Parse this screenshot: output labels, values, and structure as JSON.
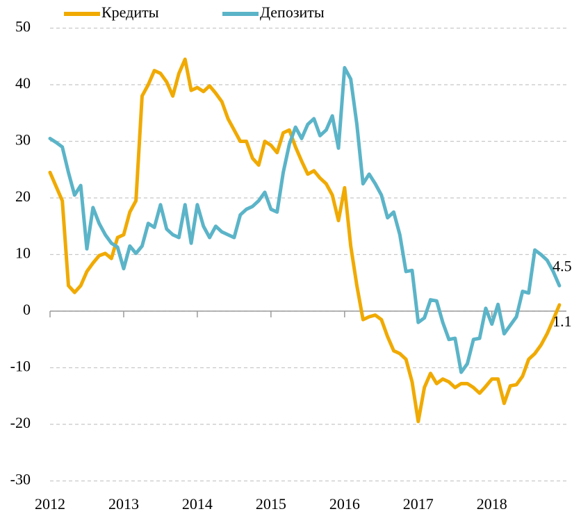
{
  "chart_data": {
    "type": "line",
    "categories": [
      "2012",
      null,
      null,
      null,
      null,
      null,
      null,
      null,
      null,
      null,
      null,
      null,
      "2013",
      null,
      null,
      null,
      null,
      null,
      null,
      null,
      null,
      null,
      null,
      null,
      "2014",
      null,
      null,
      null,
      null,
      null,
      null,
      null,
      null,
      null,
      null,
      null,
      "2015",
      null,
      null,
      null,
      null,
      null,
      null,
      null,
      null,
      null,
      null,
      null,
      "2016",
      null,
      null,
      null,
      null,
      null,
      null,
      null,
      null,
      null,
      null,
      null,
      "2017",
      null,
      null,
      null,
      null,
      null,
      null,
      null,
      null,
      null,
      null,
      null,
      "2018",
      null,
      null,
      null,
      null,
      null,
      null,
      null,
      null,
      null,
      null,
      null
    ],
    "series": [
      {
        "name": "Кредиты",
        "color": "#f0aa00",
        "end_label": "1.1",
        "values": [
          24.5,
          22,
          19.5,
          4.5,
          3.3,
          4.5,
          7,
          8.5,
          9.8,
          10.2,
          9.3,
          13,
          13.5,
          17.5,
          19.5,
          38,
          40,
          42.5,
          42,
          40.5,
          38,
          42,
          44.5,
          39,
          39.5,
          38.8,
          39.8,
          38.5,
          37,
          34,
          32,
          30,
          30,
          27,
          25.8,
          30,
          29.3,
          28,
          31.5,
          32,
          29,
          26.5,
          24.2,
          24.8,
          23.5,
          22.5,
          20.5,
          16,
          21.8,
          11.5,
          4.5,
          -1.5,
          -1,
          -0.7,
          -1.5,
          -4.5,
          -7,
          -7.5,
          -8.5,
          -12.5,
          -19.5,
          -13.5,
          -11,
          -12.8,
          -12,
          -12.5,
          -13.5,
          -12.8,
          -12.8,
          -13.5,
          -14.5,
          -13.3,
          -12,
          -12,
          -16.3,
          -13.2,
          -13,
          -11.5,
          -8.5,
          -7.5,
          -6,
          -4,
          -1.5,
          1.1
        ]
      },
      {
        "name": "Депозиты",
        "color": "#5bb4c8",
        "end_label": "4.5",
        "values": [
          30.5,
          29.8,
          29,
          24.5,
          20.5,
          22.2,
          11,
          18.3,
          15.5,
          13.5,
          12,
          11.3,
          7.5,
          11.5,
          10.2,
          11.5,
          15.5,
          14.8,
          18.8,
          14.5,
          13.5,
          13,
          18.8,
          12,
          18.8,
          15,
          13,
          15,
          14,
          13.5,
          13,
          17,
          18,
          18.5,
          19.5,
          21,
          18,
          17.5,
          24.5,
          29.5,
          32.5,
          30.5,
          33,
          34,
          31,
          32,
          34.5,
          28.8,
          43,
          41,
          33,
          22.5,
          24.2,
          22.5,
          20.5,
          16.5,
          17.5,
          13.5,
          7,
          7.2,
          -2,
          -1.2,
          2,
          1.8,
          -2,
          -5,
          -4.8,
          -10.8,
          -9.3,
          -5,
          -4.8,
          0.5,
          -2.3,
          1.2,
          -4,
          -2.5,
          -1,
          3.5,
          3.2,
          10.8,
          10,
          9,
          7,
          4.5
        ]
      }
    ],
    "ylim": [
      -30,
      50
    ],
    "yticks": [
      -30,
      -20,
      -10,
      0,
      10,
      20,
      30,
      40,
      50
    ],
    "grid": true,
    "legend": "top"
  }
}
